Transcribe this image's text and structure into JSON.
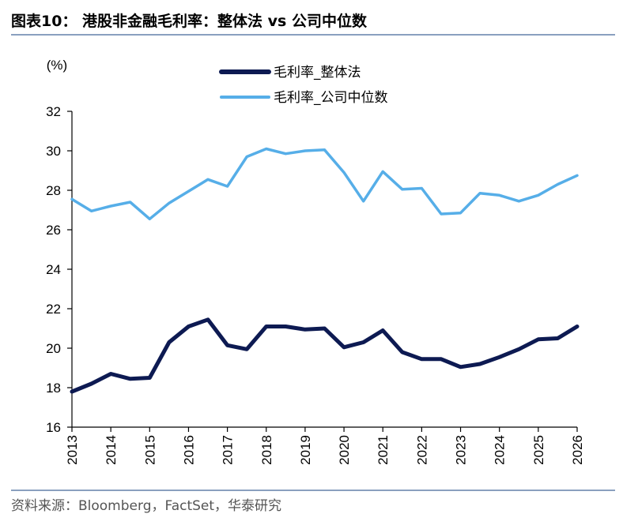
{
  "header": {
    "title": "图表10：  港股非金融毛利率：整体法  vs  公司中位数"
  },
  "footer": {
    "source": "资料来源：Bloomberg，FactSet，华泰研究"
  },
  "chart_data": {
    "type": "line",
    "title": "",
    "xlabel": "",
    "ylabel": "(%)",
    "ylim": [
      16,
      32
    ],
    "y_ticks": [
      16,
      18,
      20,
      22,
      24,
      26,
      28,
      30,
      32
    ],
    "x_ticks": [
      "2013",
      "2014",
      "2015",
      "2016",
      "2017",
      "2018",
      "2019",
      "2020",
      "2021",
      "2022",
      "2023",
      "2024",
      "2025",
      "2026"
    ],
    "xlim": [
      2013,
      2026
    ],
    "grid": false,
    "legend_position": "top",
    "x": [
      2013,
      2013.5,
      2014,
      2014.5,
      2015,
      2015.5,
      2016,
      2016.5,
      2017,
      2017.5,
      2018,
      2018.5,
      2019,
      2019.5,
      2020,
      2020.5,
      2021,
      2021.5,
      2022,
      2022.5,
      2023,
      2023.5,
      2024,
      2024.5,
      2025,
      2025.5,
      2026
    ],
    "series": [
      {
        "name": "毛利率_整体法",
        "color": "#0d1a52",
        "values": [
          17.8,
          18.2,
          18.7,
          18.45,
          18.5,
          20.3,
          21.1,
          21.45,
          20.15,
          19.95,
          21.1,
          21.1,
          20.95,
          21.0,
          20.05,
          20.3,
          20.9,
          19.8,
          19.45,
          19.45,
          19.05,
          19.2,
          19.55,
          19.95,
          20.45,
          20.5,
          21.1
        ]
      },
      {
        "name": "毛利率_公司中位数",
        "color": "#56aee8",
        "values": [
          27.55,
          26.95,
          27.2,
          27.4,
          26.55,
          27.35,
          27.95,
          28.55,
          28.2,
          29.7,
          30.1,
          29.85,
          30.0,
          30.05,
          28.9,
          27.45,
          28.95,
          28.05,
          28.1,
          26.8,
          26.85,
          27.85,
          27.75,
          27.45,
          27.75,
          28.3,
          28.75
        ]
      }
    ]
  }
}
